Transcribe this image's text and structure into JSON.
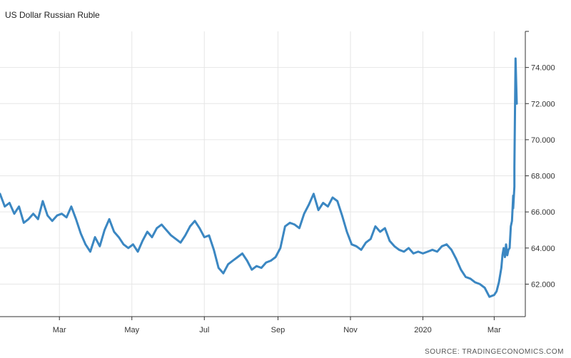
{
  "title": "US Dollar Russian Ruble",
  "source": "SOURCE: TRADINGECONOMICS.COM",
  "colors": {
    "line": "#3b87c2",
    "grid": "#e6e6e6",
    "axis": "#333333"
  },
  "chart_data": {
    "type": "line",
    "title": "US Dollar Russian Ruble",
    "y_ticks": [
      "62.000",
      "64.000",
      "66.000",
      "68.000",
      "70.000",
      "72.000",
      "74.000"
    ],
    "x_ticks": [
      {
        "label": "Mar",
        "date": "2019-03-01"
      },
      {
        "label": "May",
        "date": "2019-05-01"
      },
      {
        "label": "Jul",
        "date": "2019-07-01"
      },
      {
        "label": "Sep",
        "date": "2019-09-01"
      },
      {
        "label": "Nov",
        "date": "2019-11-01"
      },
      {
        "label": "2020",
        "date": "2020-01-01"
      },
      {
        "label": "Mar",
        "date": "2020-03-01"
      }
    ],
    "ylim": [
      60.2,
      76.0
    ],
    "xlim": [
      "2019-01-10",
      "2020-03-20"
    ],
    "grid": true,
    "y_axis_position": "right",
    "series": [
      {
        "values": [
          [
            "2019-01-10",
            67.0
          ],
          [
            "2019-01-14",
            66.3
          ],
          [
            "2019-01-18",
            66.5
          ],
          [
            "2019-01-22",
            65.9
          ],
          [
            "2019-01-26",
            66.3
          ],
          [
            "2019-01-30",
            65.4
          ],
          [
            "2019-02-03",
            65.6
          ],
          [
            "2019-02-07",
            65.9
          ],
          [
            "2019-02-11",
            65.6
          ],
          [
            "2019-02-15",
            66.6
          ],
          [
            "2019-02-19",
            65.8
          ],
          [
            "2019-02-23",
            65.5
          ],
          [
            "2019-02-27",
            65.8
          ],
          [
            "2019-03-03",
            65.9
          ],
          [
            "2019-03-07",
            65.7
          ],
          [
            "2019-03-11",
            66.3
          ],
          [
            "2019-03-15",
            65.6
          ],
          [
            "2019-03-19",
            64.8
          ],
          [
            "2019-03-23",
            64.2
          ],
          [
            "2019-03-27",
            63.8
          ],
          [
            "2019-03-31",
            64.6
          ],
          [
            "2019-04-04",
            64.1
          ],
          [
            "2019-04-08",
            65.0
          ],
          [
            "2019-04-12",
            65.6
          ],
          [
            "2019-04-16",
            64.9
          ],
          [
            "2019-04-20",
            64.6
          ],
          [
            "2019-04-24",
            64.2
          ],
          [
            "2019-04-28",
            64.0
          ],
          [
            "2019-05-02",
            64.2
          ],
          [
            "2019-05-06",
            63.8
          ],
          [
            "2019-05-10",
            64.4
          ],
          [
            "2019-05-14",
            64.9
          ],
          [
            "2019-05-18",
            64.6
          ],
          [
            "2019-05-22",
            65.1
          ],
          [
            "2019-05-26",
            65.3
          ],
          [
            "2019-05-30",
            65.0
          ],
          [
            "2019-06-03",
            64.7
          ],
          [
            "2019-06-07",
            64.5
          ],
          [
            "2019-06-11",
            64.3
          ],
          [
            "2019-06-15",
            64.7
          ],
          [
            "2019-06-19",
            65.2
          ],
          [
            "2019-06-23",
            65.5
          ],
          [
            "2019-06-27",
            65.1
          ],
          [
            "2019-07-01",
            64.6
          ],
          [
            "2019-07-05",
            64.7
          ],
          [
            "2019-07-09",
            63.9
          ],
          [
            "2019-07-13",
            62.9
          ],
          [
            "2019-07-17",
            62.6
          ],
          [
            "2019-07-21",
            63.1
          ],
          [
            "2019-07-25",
            63.3
          ],
          [
            "2019-07-29",
            63.5
          ],
          [
            "2019-08-02",
            63.7
          ],
          [
            "2019-08-06",
            63.3
          ],
          [
            "2019-08-10",
            62.8
          ],
          [
            "2019-08-14",
            63.0
          ],
          [
            "2019-08-18",
            62.9
          ],
          [
            "2019-08-22",
            63.2
          ],
          [
            "2019-08-26",
            63.3
          ],
          [
            "2019-08-30",
            63.5
          ],
          [
            "2019-09-03",
            64.0
          ],
          [
            "2019-09-07",
            65.2
          ],
          [
            "2019-09-11",
            65.4
          ],
          [
            "2019-09-15",
            65.3
          ],
          [
            "2019-09-19",
            65.1
          ],
          [
            "2019-09-23",
            65.9
          ],
          [
            "2019-09-27",
            66.4
          ],
          [
            "2019-10-01",
            67.0
          ],
          [
            "2019-10-05",
            66.1
          ],
          [
            "2019-10-09",
            66.5
          ],
          [
            "2019-10-13",
            66.3
          ],
          [
            "2019-10-17",
            66.8
          ],
          [
            "2019-10-21",
            66.6
          ],
          [
            "2019-10-25",
            65.8
          ],
          [
            "2019-10-29",
            64.9
          ],
          [
            "2019-11-02",
            64.2
          ],
          [
            "2019-11-06",
            64.1
          ],
          [
            "2019-11-10",
            63.9
          ],
          [
            "2019-11-14",
            64.3
          ],
          [
            "2019-11-18",
            64.5
          ],
          [
            "2019-11-22",
            65.2
          ],
          [
            "2019-11-26",
            64.9
          ],
          [
            "2019-11-30",
            65.1
          ],
          [
            "2019-12-04",
            64.4
          ],
          [
            "2019-12-08",
            64.1
          ],
          [
            "2019-12-12",
            63.9
          ],
          [
            "2019-12-16",
            63.8
          ],
          [
            "2019-12-20",
            64.0
          ],
          [
            "2019-12-24",
            63.7
          ],
          [
            "2019-12-28",
            63.8
          ],
          [
            "2020-01-01",
            63.7
          ],
          [
            "2020-01-05",
            63.8
          ],
          [
            "2020-01-09",
            63.9
          ],
          [
            "2020-01-13",
            63.8
          ],
          [
            "2020-01-17",
            64.1
          ],
          [
            "2020-01-21",
            64.2
          ],
          [
            "2020-01-25",
            63.9
          ],
          [
            "2020-01-29",
            63.4
          ],
          [
            "2020-02-02",
            62.8
          ],
          [
            "2020-02-06",
            62.4
          ],
          [
            "2020-02-10",
            62.3
          ],
          [
            "2020-02-14",
            62.1
          ],
          [
            "2020-02-18",
            62.0
          ],
          [
            "2020-02-22",
            61.8
          ],
          [
            "2020-02-26",
            61.3
          ],
          [
            "2020-03-01",
            61.4
          ],
          [
            "2020-03-03",
            61.6
          ],
          [
            "2020-03-05",
            62.1
          ],
          [
            "2020-03-07",
            62.9
          ],
          [
            "2020-03-08",
            63.6
          ],
          [
            "2020-03-09",
            64.0
          ],
          [
            "2020-03-10",
            63.5
          ],
          [
            "2020-03-11",
            64.2
          ],
          [
            "2020-03-12",
            63.6
          ],
          [
            "2020-03-13",
            63.9
          ],
          [
            "2020-03-14",
            64.0
          ],
          [
            "2020-03-15",
            65.2
          ],
          [
            "2020-03-16",
            65.5
          ],
          [
            "2020-03-17",
            66.9
          ],
          [
            "2020-03-17",
            66.2
          ],
          [
            "2020-03-18",
            67.4
          ],
          [
            "2020-03-18",
            68.5
          ],
          [
            "2020-03-19",
            74.5
          ],
          [
            "2020-03-20",
            72.0
          ]
        ]
      }
    ]
  }
}
